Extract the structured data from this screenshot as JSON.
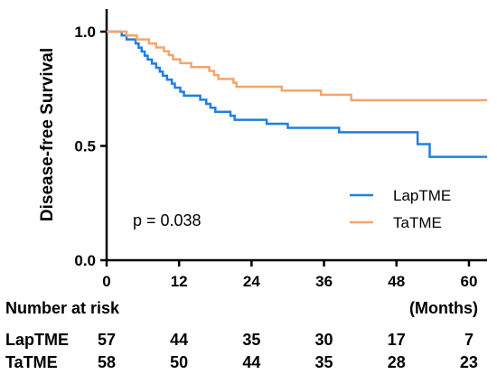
{
  "chart_data": {
    "type": "line",
    "subtype": "kaplan-meier",
    "ylabel": "Disease-free Survival",
    "xlabel": "",
    "x_unit_label": "(Months)",
    "xlim": [
      0,
      63
    ],
    "ylim": [
      0,
      1.05
    ],
    "x_ticks": [
      0,
      12,
      24,
      36,
      48,
      60
    ],
    "y_ticks": [
      0.0,
      0.5,
      1.0
    ],
    "y_tick_labels": [
      "0.0",
      "0.5",
      "1.0"
    ],
    "grid": false,
    "legend_position": "lower-right",
    "annotation": "p = 0.038",
    "series": [
      {
        "name": "LapTME",
        "color": "#1f7fe0",
        "steps": [
          [
            0,
            1.0
          ],
          [
            2.5,
            0.983
          ],
          [
            3.3,
            0.966
          ],
          [
            4.8,
            0.948
          ],
          [
            5.3,
            0.93
          ],
          [
            5.8,
            0.913
          ],
          [
            6.3,
            0.895
          ],
          [
            6.8,
            0.878
          ],
          [
            7.5,
            0.86
          ],
          [
            8.2,
            0.842
          ],
          [
            8.8,
            0.825
          ],
          [
            9.3,
            0.807
          ],
          [
            10.0,
            0.79
          ],
          [
            10.8,
            0.772
          ],
          [
            11.3,
            0.755
          ],
          [
            12.2,
            0.737
          ],
          [
            12.8,
            0.72
          ],
          [
            14.5,
            0.72
          ],
          [
            15.5,
            0.702
          ],
          [
            16.5,
            0.684
          ],
          [
            17.2,
            0.667
          ],
          [
            18.0,
            0.649
          ],
          [
            20.5,
            0.632
          ],
          [
            21.2,
            0.614
          ],
          [
            26.5,
            0.597
          ],
          [
            28.0,
            0.597
          ],
          [
            30.0,
            0.579
          ],
          [
            33.5,
            0.579
          ],
          [
            38.5,
            0.56
          ],
          [
            44.0,
            0.56
          ],
          [
            48.5,
            0.56
          ],
          [
            51.5,
            0.508
          ],
          [
            53.5,
            0.452
          ],
          [
            63.0,
            0.452
          ]
        ]
      },
      {
        "name": "TaTME",
        "color": "#f5a56b",
        "steps": [
          [
            0,
            1.0
          ],
          [
            3.3,
            0.983
          ],
          [
            5.0,
            0.966
          ],
          [
            7.0,
            0.948
          ],
          [
            8.2,
            0.931
          ],
          [
            9.5,
            0.914
          ],
          [
            10.3,
            0.897
          ],
          [
            11.0,
            0.879
          ],
          [
            12.2,
            0.862
          ],
          [
            14.0,
            0.845
          ],
          [
            17.0,
            0.828
          ],
          [
            17.8,
            0.81
          ],
          [
            18.5,
            0.793
          ],
          [
            21.0,
            0.776
          ],
          [
            21.5,
            0.759
          ],
          [
            27.5,
            0.759
          ],
          [
            29.0,
            0.742
          ],
          [
            33.5,
            0.742
          ],
          [
            35.5,
            0.724
          ],
          [
            40.5,
            0.7
          ],
          [
            44.0,
            0.7
          ],
          [
            49.0,
            0.7
          ],
          [
            63.0,
            0.7
          ]
        ]
      }
    ],
    "risk_table": {
      "title": "Number at risk",
      "times": [
        0,
        12,
        24,
        36,
        48,
        60
      ],
      "rows": [
        {
          "label": "LapTME",
          "counts": [
            "57",
            "44",
            "35",
            "30",
            "17",
            "7"
          ]
        },
        {
          "label": "TaTME",
          "counts": [
            "58",
            "50",
            "44",
            "35",
            "28",
            "23"
          ]
        }
      ]
    }
  }
}
